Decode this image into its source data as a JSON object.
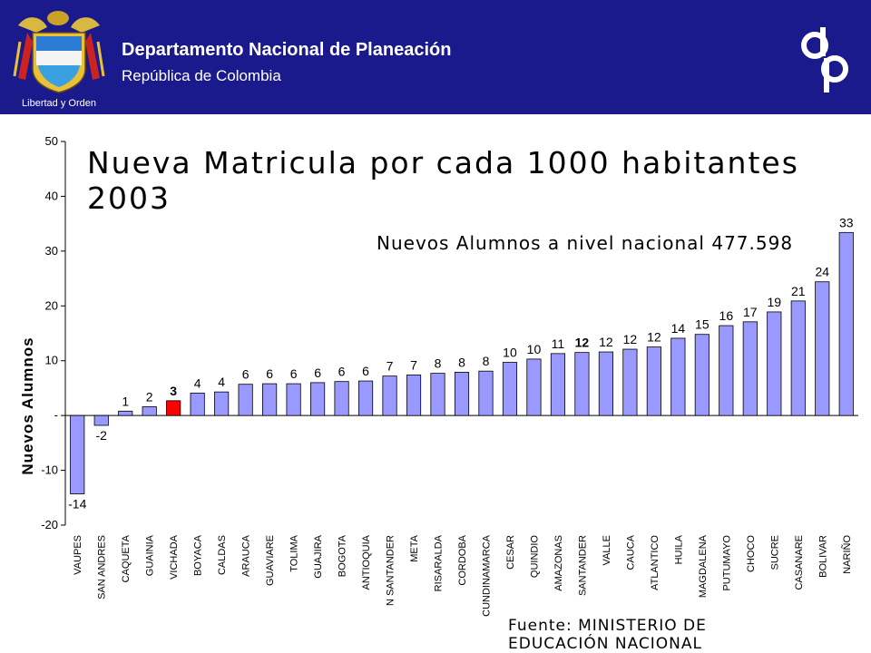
{
  "header": {
    "org_name": "Departamento Nacional de Planeación",
    "org_country": "República de Colombia",
    "seal_motto": "Libertad y Orden",
    "bg_color": "#1a1a8c"
  },
  "chart_data": {
    "type": "bar",
    "title": "Nueva Matricula por cada 1000 habitantes 2003",
    "annotation": "Nuevos Alumnos a nivel nacional 477.598",
    "source": "Fuente: MINISTERIO DE EDUCACIÓN NACIONAL",
    "xlabel": "",
    "ylabel": "Nuevos Alumnos",
    "ylim": [
      -20,
      50
    ],
    "yticks": [
      "-20",
      "-10",
      "-",
      "10",
      "20",
      "30",
      "40",
      "50"
    ],
    "grid": false,
    "bar_color": "#9999ff",
    "highlight_color": "#ff0000",
    "highlight_category": "VICHADA",
    "categories": [
      "VAUPES",
      "SAN ANDRES",
      "CAQUETA",
      "GUAINIA",
      "VICHADA",
      "BOYACA",
      "CALDAS",
      "ARAUCA",
      "GUAVIARE",
      "TOLIMA",
      "GUAJIRA",
      "BOGOTA",
      "ANTIOQUIA",
      "N SANTANDER",
      "META",
      "RISARALDA",
      "CORDOBA",
      "CUNDINAMARCA",
      "CESAR",
      "QUINDIO",
      "AMAZONAS",
      "SANTANDER",
      "VALLE",
      "CAUCA",
      "ATLANTICO",
      "HUILA",
      "MAGDALENA",
      "PUTUMAYO",
      "CHOCO",
      "SUCRE",
      "CASANARE",
      "BOLIVAR",
      "NARIÑO"
    ],
    "values": [
      -14.3,
      -1.8,
      0.8,
      1.6,
      2.7,
      4.1,
      4.3,
      5.7,
      5.8,
      5.8,
      6.0,
      6.2,
      6.3,
      7.2,
      7.4,
      7.7,
      7.9,
      8.1,
      9.7,
      10.3,
      11.3,
      11.5,
      11.6,
      12.1,
      12.5,
      14.1,
      14.8,
      16.4,
      17.1,
      18.9,
      20.9,
      24.4,
      33.4
    ],
    "data_labels": [
      "-14",
      "-2",
      "1",
      "2",
      "3",
      "4",
      "4",
      "6",
      "6",
      "6",
      "6",
      "6",
      "6",
      "7",
      "7",
      "8",
      "8",
      "8",
      "10",
      "10",
      "11",
      "12",
      "12",
      "12",
      "12",
      "14",
      "15",
      "16",
      "17",
      "19",
      "21",
      "24",
      "33"
    ]
  }
}
